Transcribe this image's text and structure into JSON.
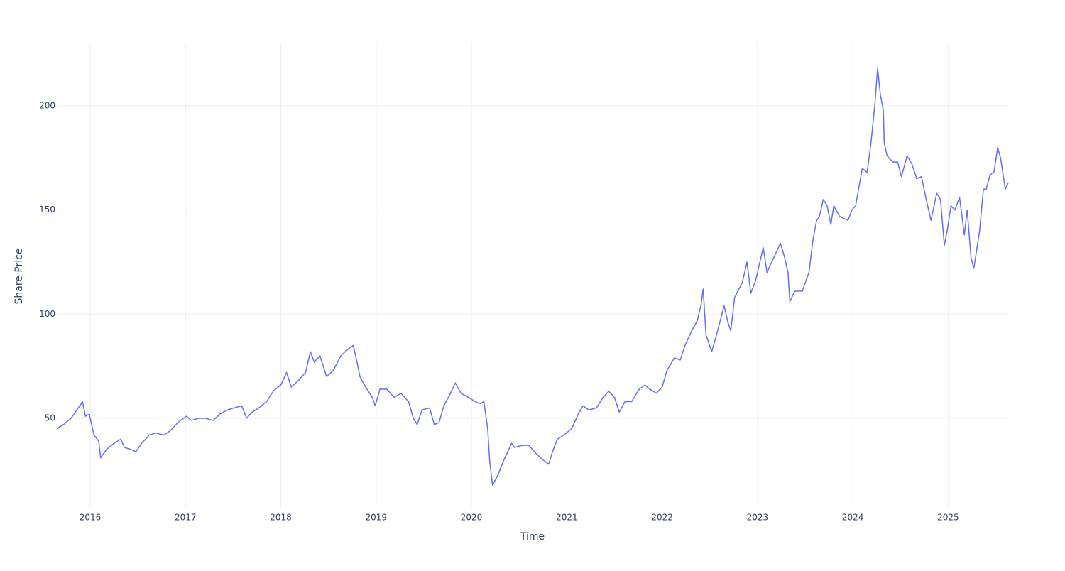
{
  "chart_data": {
    "type": "line",
    "x_label": "Time",
    "y_label": "Share Price",
    "color": "#636efa",
    "grid": true,
    "xlim": [
      2015.65,
      2025.63
    ],
    "xticks": [
      2016,
      2017,
      2018,
      2019,
      2020,
      2021,
      2022,
      2023,
      2024,
      2025
    ],
    "ylim": [
      7.4,
      230.3
    ],
    "yticks": [
      50,
      100,
      150,
      200
    ],
    "x": [
      2015.65,
      2015.72,
      2015.8,
      2015.86,
      2015.92,
      2015.95,
      2015.99,
      2016.04,
      2016.09,
      2016.11,
      2016.17,
      2016.25,
      2016.32,
      2016.36,
      2016.43,
      2016.48,
      2016.54,
      2016.62,
      2016.69,
      2016.77,
      2016.84,
      2016.92,
      2017.01,
      2017.06,
      2017.14,
      2017.21,
      2017.29,
      2017.36,
      2017.44,
      2017.51,
      2017.59,
      2017.64,
      2017.7,
      2017.77,
      2017.85,
      2017.92,
      2018.0,
      2018.06,
      2018.11,
      2018.18,
      2018.26,
      2018.31,
      2018.35,
      2018.41,
      2018.48,
      2018.55,
      2018.63,
      2018.7,
      2018.76,
      2018.79,
      2018.83,
      2018.89,
      2018.96,
      2018.99,
      2019.04,
      2019.11,
      2019.19,
      2019.26,
      2019.34,
      2019.39,
      2019.43,
      2019.48,
      2019.56,
      2019.61,
      2019.66,
      2019.71,
      2019.78,
      2019.83,
      2019.89,
      2019.97,
      2020.04,
      2020.09,
      2020.13,
      2020.17,
      2020.19,
      2020.22,
      2020.27,
      2020.34,
      2020.42,
      2020.45,
      2020.53,
      2020.6,
      2020.68,
      2020.75,
      2020.81,
      2020.85,
      2020.9,
      2020.97,
      2021.05,
      2021.12,
      2021.17,
      2021.23,
      2021.31,
      2021.38,
      2021.44,
      2021.5,
      2021.55,
      2021.61,
      2021.68,
      2021.76,
      2021.82,
      2021.87,
      2021.94,
      2022.0,
      2022.05,
      2022.13,
      2022.19,
      2022.24,
      2022.31,
      2022.37,
      2022.41,
      2022.43,
      2022.46,
      2022.52,
      2022.57,
      2022.65,
      2022.69,
      2022.72,
      2022.76,
      2022.84,
      2022.89,
      2022.93,
      2022.98,
      2023.06,
      2023.1,
      2023.17,
      2023.24,
      2023.28,
      2023.32,
      2023.34,
      2023.39,
      2023.47,
      2023.54,
      2023.58,
      2023.62,
      2023.65,
      2023.69,
      2023.73,
      2023.77,
      2023.8,
      2023.86,
      2023.9,
      2023.95,
      2023.99,
      2024.03,
      2024.06,
      2024.1,
      2024.15,
      2024.19,
      2024.23,
      2024.26,
      2024.29,
      2024.32,
      2024.33,
      2024.36,
      2024.42,
      2024.47,
      2024.51,
      2024.57,
      2024.62,
      2024.67,
      2024.72,
      2024.77,
      2024.82,
      2024.88,
      2024.92,
      2024.96,
      2024.99,
      2025.03,
      2025.07,
      2025.12,
      2025.17,
      2025.2,
      2025.24,
      2025.27,
      2025.33,
      2025.37,
      2025.4,
      2025.44,
      2025.48,
      2025.52,
      2025.55,
      2025.6,
      2025.63
    ],
    "values": [
      45,
      47,
      50,
      54,
      58,
      51,
      52,
      42,
      39,
      31,
      35,
      38,
      40,
      36,
      35,
      34,
      38,
      42,
      43,
      42,
      44,
      48,
      51,
      49,
      50,
      50,
      49,
      52,
      54,
      55,
      56,
      50,
      53,
      55,
      58,
      63,
      66,
      72,
      65,
      68,
      72,
      82,
      77,
      80,
      70,
      73,
      80,
      83,
      85,
      79,
      70,
      65,
      60,
      56,
      64,
      64,
      60,
      62,
      58,
      50,
      47,
      54,
      55,
      47,
      48,
      56,
      62,
      67,
      62,
      60,
      58,
      57,
      58,
      45,
      30,
      18,
      22,
      30,
      38,
      36,
      37,
      37,
      33,
      30,
      28,
      34,
      40,
      42,
      45,
      52,
      56,
      54,
      55,
      60,
      63,
      60,
      53,
      58,
      58,
      64,
      66,
      64,
      62,
      65,
      73,
      79,
      78,
      85,
      92,
      97,
      105,
      112,
      90,
      82,
      90,
      104,
      96,
      92,
      108,
      115,
      125,
      110,
      116,
      132,
      120,
      127,
      134,
      128,
      120,
      106,
      111,
      111,
      120,
      135,
      145,
      147,
      155,
      152,
      143,
      152,
      147,
      146,
      145,
      150,
      152,
      160,
      170,
      168,
      182,
      200,
      218,
      205,
      198,
      182,
      176,
      173,
      173,
      166,
      176,
      172,
      165,
      166,
      155,
      145,
      158,
      155,
      133,
      140,
      152,
      150,
      156,
      138,
      150,
      127,
      122,
      140,
      160,
      160,
      167,
      168,
      180,
      175,
      160,
      163
    ]
  }
}
